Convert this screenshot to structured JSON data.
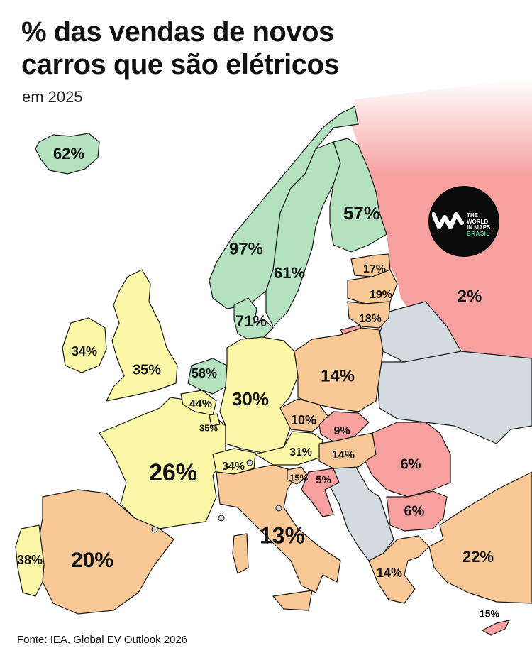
{
  "header": {
    "title": "% das vendas de novos carros que são elétricos",
    "subtitle": "em 2025"
  },
  "footer": {
    "source": "Fonte: IEA, Global EV Outlook 2026"
  },
  "logo": {
    "line1": "THE",
    "line2": "WORLD",
    "line3": "IN MAPS",
    "line4": "BRASIL"
  },
  "colors": {
    "green": "#b4e2bf",
    "yellow": "#fbf7a6",
    "orange": "#f9c897",
    "red": "#f7a0a0",
    "no_data": "#d3dbe0",
    "border": "#1a1a1a"
  },
  "countries": [
    {
      "name": "Iceland",
      "value": "62%",
      "color": "green"
    },
    {
      "name": "Norway",
      "value": "97%",
      "color": "green"
    },
    {
      "name": "Sweden",
      "value": "61%",
      "color": "green"
    },
    {
      "name": "Finland",
      "value": "57%",
      "color": "green"
    },
    {
      "name": "Denmark",
      "value": "71%",
      "color": "green"
    },
    {
      "name": "Netherlands",
      "value": "58%",
      "color": "green"
    },
    {
      "name": "Ireland",
      "value": "34%",
      "color": "yellow"
    },
    {
      "name": "United Kingdom",
      "value": "35%",
      "color": "yellow"
    },
    {
      "name": "Belgium",
      "value": "44%",
      "color": "yellow"
    },
    {
      "name": "Luxembourg",
      "value": "35%",
      "color": "yellow"
    },
    {
      "name": "Germany",
      "value": "30%",
      "color": "yellow"
    },
    {
      "name": "France",
      "value": "26%",
      "color": "yellow"
    },
    {
      "name": "Switzerland",
      "value": "34%",
      "color": "yellow"
    },
    {
      "name": "Austria",
      "value": "31%",
      "color": "yellow"
    },
    {
      "name": "Portugal",
      "value": "38%",
      "color": "yellow"
    },
    {
      "name": "Spain",
      "value": "20%",
      "color": "orange"
    },
    {
      "name": "Italy",
      "value": "13%",
      "color": "orange"
    },
    {
      "name": "Poland",
      "value": "14%",
      "color": "orange"
    },
    {
      "name": "Czechia",
      "value": "10%",
      "color": "orange"
    },
    {
      "name": "Hungary",
      "value": "14%",
      "color": "orange"
    },
    {
      "name": "Slovenia",
      "value": "15%",
      "color": "orange"
    },
    {
      "name": "Estonia",
      "value": "17%",
      "color": "orange"
    },
    {
      "name": "Latvia",
      "value": "19%",
      "color": "orange"
    },
    {
      "name": "Lithuania",
      "value": "18%",
      "color": "orange"
    },
    {
      "name": "Greece",
      "value": "14%",
      "color": "orange"
    },
    {
      "name": "Turkey",
      "value": "22%",
      "color": "orange"
    },
    {
      "name": "Slovakia",
      "value": "9%",
      "color": "red"
    },
    {
      "name": "Croatia",
      "value": "5%",
      "color": "red"
    },
    {
      "name": "Romania",
      "value": "6%",
      "color": "red"
    },
    {
      "name": "Bulgaria",
      "value": "6%",
      "color": "red"
    },
    {
      "name": "Russia",
      "value": "2%",
      "color": "red"
    },
    {
      "name": "Cyprus",
      "value": "15%",
      "color": "red"
    }
  ]
}
